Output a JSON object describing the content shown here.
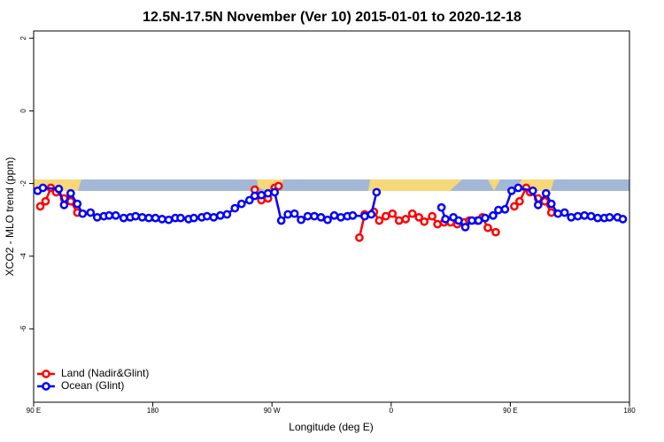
{
  "chart_data": {
    "type": "line",
    "title": "12.5N-17.5N November (Ver 10)   2015-01-01 to 2020-12-18",
    "x_label": "Longitude (deg E)",
    "y_label": "XCO2 - MLO trend (ppm)",
    "xlim": [
      90,
      540
    ],
    "ylim": [
      -8.02,
      2.2
    ],
    "xticks": [
      {
        "value": 90,
        "label": "90 E"
      },
      180,
      {
        "value": 270,
        "label": "90 W"
      },
      {
        "value": 360,
        "label": "0"
      },
      {
        "value": 450,
        "label": "90 E"
      },
      {
        "value": 540,
        "label": "180"
      }
    ],
    "yticks": [
      2,
      0,
      -2,
      -4,
      -6
    ],
    "legend": "bottomleft",
    "series": [
      {
        "name": "Land (Nadir&Glint)",
        "color": "#ff0000",
        "x": [
          95,
          99,
          103,
          107,
          113,
          118,
          123,
          null,
          257,
          262,
          267,
          272,
          275,
          null,
          336,
          340,
          347,
          351,
          356,
          361,
          366,
          371,
          376,
          381,
          385,
          391,
          395,
          400,
          405,
          410,
          415,
          419,
          425,
          429,
          433,
          439,
          null,
          453,
          457,
          462,
          465,
          471,
          476,
          481
        ],
        "values": [
          -2.63,
          -2.49,
          -2.12,
          -2.24,
          -2.41,
          -2.49,
          -2.8,
          null,
          -2.17,
          -2.46,
          -2.41,
          -2.12,
          -2.07,
          null,
          -3.49,
          -2.85,
          -2.78,
          -3.02,
          -2.9,
          -2.83,
          -3.02,
          -2.98,
          -2.83,
          -2.93,
          -3.05,
          -2.9,
          -3.12,
          -3.07,
          -3.07,
          -3.12,
          -3.07,
          -3.02,
          -3.02,
          -2.93,
          -3.22,
          -3.34,
          null,
          -2.63,
          -2.49,
          -2.12,
          -2.24,
          -2.41,
          -2.49,
          -2.8
        ]
      },
      {
        "name": "Ocean (Glint)",
        "color": "#0000ff",
        "x": [
          93,
          97,
          109,
          113,
          118,
          123,
          127,
          133,
          138,
          143,
          147,
          152,
          158,
          163,
          167,
          172,
          177,
          182,
          187,
          192,
          197,
          201,
          207,
          211,
          217,
          221,
          226,
          231,
          236,
          242,
          247,
          253,
          257,
          262,
          267,
          272,
          277,
          282,
          287,
          292,
          297,
          302,
          307,
          312,
          317,
          322,
          327,
          331,
          340,
          345,
          349,
          null,
          398,
          401,
          407,
          411,
          416,
          421,
          426,
          431,
          437,
          441,
          446,
          451,
          456,
          467,
          471,
          477,
          481,
          486,
          491,
          496,
          501,
          506,
          511,
          516,
          521,
          525,
          531,
          535
        ],
        "values": [
          -2.2,
          -2.12,
          -2.15,
          -2.59,
          -2.27,
          -2.56,
          -2.83,
          -2.8,
          -2.93,
          -2.9,
          -2.88,
          -2.88,
          -2.95,
          -2.93,
          -2.9,
          -2.93,
          -2.95,
          -2.95,
          -2.98,
          -3.0,
          -2.95,
          -2.95,
          -2.98,
          -2.95,
          -2.93,
          -2.9,
          -2.93,
          -2.88,
          -2.85,
          -2.68,
          -2.56,
          -2.46,
          -2.34,
          -2.32,
          -2.27,
          -2.24,
          -3.02,
          -2.85,
          -2.83,
          -3.0,
          -2.9,
          -2.9,
          -2.93,
          -3.0,
          -2.88,
          -2.93,
          -2.9,
          -2.88,
          -2.9,
          -2.85,
          -2.24,
          null,
          -2.66,
          -2.98,
          -2.93,
          -3.02,
          -3.2,
          -3.02,
          -3.02,
          -2.95,
          -2.88,
          -2.73,
          -2.71,
          -2.2,
          -2.12,
          -2.2,
          -2.59,
          -2.27,
          -2.56,
          -2.83,
          -2.8,
          -2.93,
          -2.9,
          -2.88,
          -2.9,
          -2.95,
          -2.95,
          -2.93,
          -2.93,
          -2.98
        ]
      }
    ]
  }
}
